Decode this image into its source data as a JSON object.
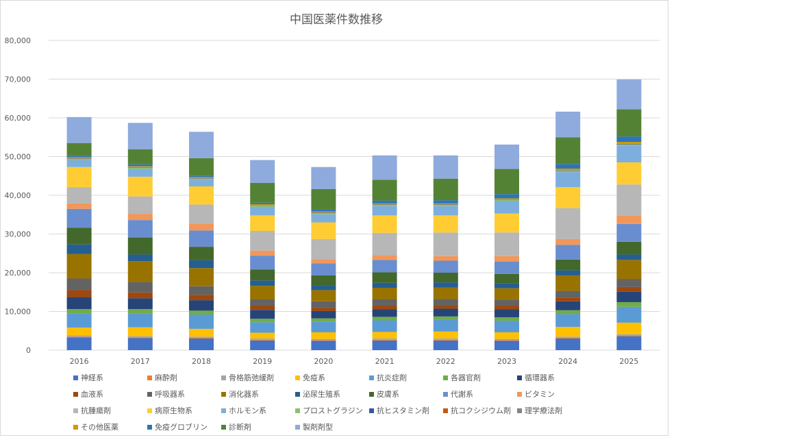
{
  "chart_data": {
    "type": "bar",
    "stacked": true,
    "title": "中国医薬件数推移",
    "ylim": [
      0,
      80000
    ],
    "yticks": [
      "0",
      "10,000",
      "20,000",
      "30,000",
      "40,000",
      "50,000",
      "60,000",
      "70,000",
      "80,000"
    ],
    "grid": true,
    "legend_position": "bottom",
    "categories": [
      "2016",
      "2017",
      "2018",
      "2019",
      "2020",
      "2021",
      "2022",
      "2023",
      "2024",
      "2025"
    ],
    "series": [
      {
        "name": "神経系",
        "color": "#4472c4",
        "values": [
          3300,
          3100,
          3000,
          2500,
          2400,
          2500,
          2500,
          2400,
          3000,
          3600
        ]
      },
      {
        "name": "麻酔剤",
        "color": "#ed7d31",
        "values": [
          200,
          200,
          200,
          200,
          200,
          200,
          200,
          200,
          200,
          200
        ]
      },
      {
        "name": "骨格筋弛緩剤",
        "color": "#a5a5a5",
        "values": [
          300,
          300,
          300,
          300,
          300,
          300,
          300,
          300,
          300,
          300
        ]
      },
      {
        "name": "免疫系",
        "color": "#ffc000",
        "values": [
          2000,
          2300,
          2000,
          1500,
          1700,
          1700,
          1800,
          1700,
          2500,
          3000
        ]
      },
      {
        "name": "抗炎症剤",
        "color": "#5b9bd5",
        "values": [
          3700,
          3600,
          3700,
          2700,
          2800,
          3000,
          3000,
          3000,
          3300,
          4100
        ]
      },
      {
        "name": "各器官剤",
        "color": "#70ad47",
        "values": [
          1100,
          1100,
          1000,
          900,
          800,
          900,
          900,
          900,
          1000,
          1200
        ]
      },
      {
        "name": "循環器系",
        "color": "#264478",
        "values": [
          3100,
          2800,
          2700,
          2300,
          1900,
          2000,
          2000,
          2100,
          2300,
          2700
        ]
      },
      {
        "name": "血液系",
        "color": "#9e480e",
        "values": [
          1800,
          1500,
          1400,
          1100,
          800,
          900,
          900,
          900,
          1000,
          1200
        ]
      },
      {
        "name": "呼吸器系",
        "color": "#636363",
        "values": [
          3000,
          2700,
          2200,
          1600,
          1700,
          1600,
          1600,
          1500,
          1700,
          2100
        ]
      },
      {
        "name": "消化器系",
        "color": "#997300",
        "values": [
          6300,
          5400,
          4700,
          3500,
          2900,
          3000,
          3000,
          3000,
          4000,
          4900
        ]
      },
      {
        "name": "泌尿生殖系",
        "color": "#255e91",
        "values": [
          2500,
          1700,
          2000,
          1400,
          1300,
          1300,
          1300,
          1300,
          1300,
          1400
        ]
      },
      {
        "name": "皮膚系",
        "color": "#43682b",
        "values": [
          4300,
          4400,
          3500,
          2800,
          2500,
          2700,
          2500,
          2400,
          2800,
          3300
        ]
      },
      {
        "name": "代謝系",
        "color": "#698ed0",
        "values": [
          4900,
          4500,
          4200,
          3600,
          3100,
          3200,
          3100,
          3200,
          3800,
          4600
        ]
      },
      {
        "name": "ビタミン",
        "color": "#f1975a",
        "values": [
          1400,
          1600,
          1800,
          1300,
          1100,
          1200,
          1200,
          1400,
          1500,
          2100
        ]
      },
      {
        "name": "抗腫瘍剤",
        "color": "#b7b7b7",
        "values": [
          4200,
          4500,
          4900,
          5100,
          5200,
          5800,
          6100,
          6100,
          8000,
          8100
        ]
      },
      {
        "name": "病原生物系",
        "color": "#ffcd33",
        "values": [
          5200,
          5100,
          4700,
          4000,
          4300,
          4500,
          4400,
          4900,
          5400,
          5700
        ]
      },
      {
        "name": "ホルモン系",
        "color": "#7cafdd",
        "values": [
          1800,
          2000,
          1700,
          2200,
          2100,
          2400,
          2400,
          3200,
          3900,
          4300
        ]
      },
      {
        "name": "プロストグラジン",
        "color": "#8cc168",
        "values": [
          300,
          300,
          300,
          300,
          300,
          300,
          300,
          300,
          300,
          300
        ]
      },
      {
        "name": "抗ヒスタミン剤",
        "color": "#335aa1",
        "values": [
          100,
          100,
          100,
          100,
          100,
          100,
          100,
          100,
          100,
          100
        ]
      },
      {
        "name": "抗コクシジウム剤",
        "color": "#c65911",
        "values": [
          50,
          50,
          50,
          50,
          50,
          50,
          50,
          50,
          50,
          50
        ]
      },
      {
        "name": "理学療法剤",
        "color": "#848484",
        "values": [
          50,
          50,
          50,
          50,
          50,
          50,
          50,
          50,
          50,
          50
        ]
      },
      {
        "name": "その他医薬",
        "color": "#cc9a06",
        "values": [
          200,
          200,
          200,
          200,
          200,
          200,
          200,
          200,
          400,
          500
        ]
      },
      {
        "name": "免疫グロブリン",
        "color": "#2e75b6",
        "values": [
          400,
          500,
          400,
          400,
          500,
          700,
          800,
          1100,
          1200,
          1400
        ]
      },
      {
        "name": "診断剤",
        "color": "#548235",
        "values": [
          3300,
          3900,
          4500,
          5100,
          5300,
          5400,
          5600,
          6500,
          6900,
          7000
        ]
      },
      {
        "name": "製剤剤型",
        "color": "#8faadc",
        "values": [
          6700,
          6800,
          6800,
          5900,
          5700,
          6300,
          6000,
          6300,
          6600,
          7700
        ]
      }
    ]
  }
}
